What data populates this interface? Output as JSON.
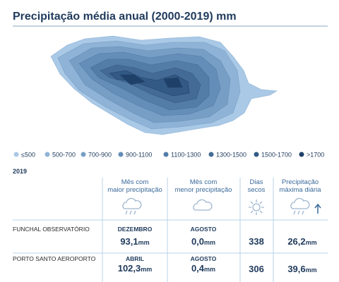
{
  "title": "Precipitação média anual (2000-2019) mm",
  "legend": [
    {
      "label": "≤500",
      "color": "#a9c9e6"
    },
    {
      "label": "500-700",
      "color": "#8fb3d6"
    },
    {
      "label": "700-900",
      "color": "#779fc6"
    },
    {
      "label": "900-1100",
      "color": "#648db7"
    },
    {
      "label": "1100-1300",
      "color": "#537ca7"
    },
    {
      "label": "1300-1500",
      "color": "#436b96"
    },
    {
      "label": "1500-1700",
      "color": "#335a84"
    },
    {
      "label": ">1700",
      "color": "#1f4068"
    }
  ],
  "table": {
    "year": "2019",
    "columns": [
      [
        "Mês com",
        "maior precipitação"
      ],
      [
        "Mês com",
        "menor precipitação"
      ],
      [
        "Dias",
        "secos"
      ],
      [
        "Precipitação",
        "máxima diária"
      ]
    ],
    "rows": [
      {
        "station": "FUNCHAL OBSERVATÓRIO",
        "max_month": "DEZEMBRO",
        "max_value": "93,1",
        "max_unit": "mm",
        "min_month": "AGOSTO",
        "min_value": "0,0",
        "min_unit": "mm",
        "dry_days": "338",
        "daily_max": "26,2",
        "daily_unit": "mm"
      },
      {
        "station": "PORTO SANTO AEROPORTO",
        "max_month": "ABRIL",
        "max_value": "102,3",
        "max_unit": "mm",
        "min_month": "AGOSTO",
        "min_value": "0,4",
        "min_unit": "mm",
        "dry_days": "306",
        "daily_max": "39,6",
        "daily_unit": "mm"
      }
    ]
  }
}
